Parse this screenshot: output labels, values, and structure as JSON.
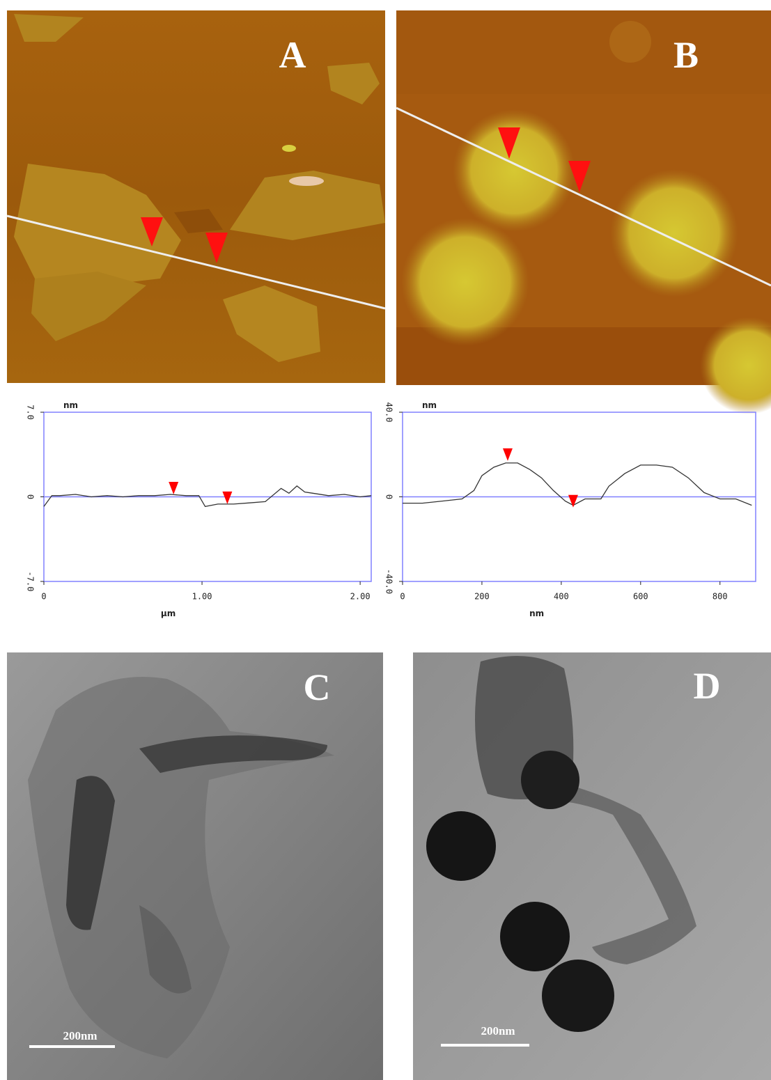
{
  "panels": [
    {
      "label": "A"
    },
    {
      "label": "B"
    },
    {
      "label": "C",
      "scale_bar": "200nm"
    },
    {
      "label": "D",
      "scale_bar": "200nm"
    }
  ],
  "chart_data": [
    {
      "type": "line",
      "ylabel": "nm",
      "xlabel": "µm",
      "x": [
        0,
        0.05,
        0.1,
        0.2,
        0.3,
        0.4,
        0.5,
        0.6,
        0.7,
        0.8,
        0.9,
        0.98,
        1.02,
        1.1,
        1.2,
        1.3,
        1.4,
        1.5,
        1.55,
        1.6,
        1.65,
        1.7,
        1.8,
        1.9,
        2.0,
        2.07
      ],
      "values": [
        -0.8,
        0.1,
        0.1,
        0.2,
        0.0,
        0.1,
        0.0,
        0.1,
        0.1,
        0.2,
        0.1,
        0.1,
        -0.8,
        -0.6,
        -0.6,
        -0.5,
        -0.4,
        0.7,
        0.3,
        0.9,
        0.4,
        0.3,
        0.1,
        0.2,
        0.0,
        0.1
      ],
      "color": "#333333",
      "markers": {
        "x": [
          0.82,
          1.16
        ],
        "values": [
          0.2,
          -0.6
        ],
        "color": "#ff0000"
      },
      "xlim": [
        0,
        2.07
      ],
      "ylim": [
        -7,
        7
      ],
      "xticks": [
        0,
        {
          "value": 1,
          "label": "1.00"
        },
        {
          "value": 2,
          "label": "2.00"
        }
      ],
      "yticks": [
        {
          "value": 7,
          "label": "7.0"
        },
        0,
        {
          "value": -7,
          "label": "-7.0"
        }
      ],
      "frame_color": "#8080ff",
      "zero_line": true
    },
    {
      "type": "line",
      "ylabel": "nm",
      "xlabel": "nm",
      "x": [
        0,
        50,
        100,
        150,
        180,
        200,
        230,
        260,
        290,
        320,
        350,
        380,
        410,
        430,
        460,
        500,
        520,
        560,
        600,
        640,
        680,
        720,
        760,
        800,
        840,
        880
      ],
      "values": [
        -3,
        -3,
        -2,
        -1,
        3,
        10,
        14,
        16,
        16,
        13,
        9,
        3,
        -2,
        -4,
        -1,
        -1,
        5,
        11,
        15,
        15,
        14,
        9,
        2,
        -1,
        -1,
        -4
      ],
      "color": "#333333",
      "markers": {
        "x": [
          265,
          430
        ],
        "values": [
          17,
          -5
        ],
        "color": "#ff0000"
      },
      "xlim": [
        0,
        890
      ],
      "ylim": [
        -40,
        40
      ],
      "xticks": [
        0,
        200,
        400,
        600,
        800
      ],
      "yticks": [
        {
          "value": 40,
          "label": "40.0"
        },
        0,
        {
          "value": -40,
          "label": "-40.0"
        }
      ],
      "frame_color": "#8080ff",
      "zero_line": true
    }
  ]
}
